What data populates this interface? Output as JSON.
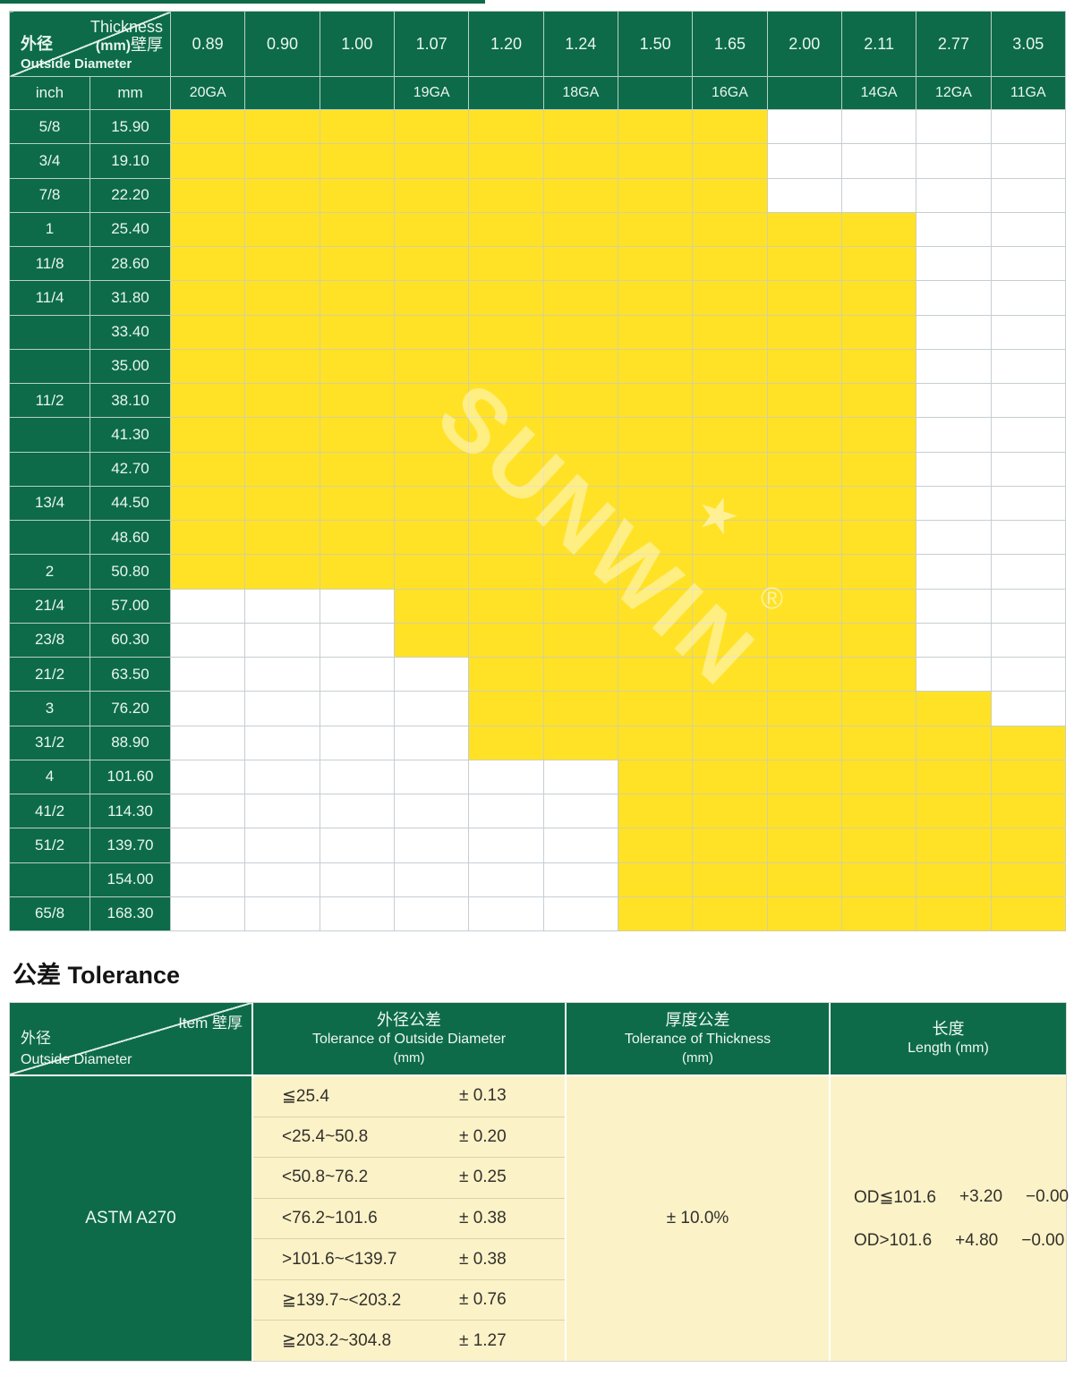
{
  "main_table": {
    "corner": {
      "thickness_en": "Thickness",
      "thickness_unit": "(mm)",
      "thickness_cn": "壁厚",
      "od_cn": "外径",
      "od_en": "Outside Diameter"
    },
    "subheader": {
      "inch": "inch",
      "mm": "mm"
    },
    "thickness_columns": [
      "0.89",
      "0.90",
      "1.00",
      "1.07",
      "1.20",
      "1.24",
      "1.50",
      "1.65",
      "2.00",
      "2.11",
      "2.77",
      "3.05"
    ],
    "gauge_row": [
      "20GA",
      "",
      "",
      "19GA",
      "",
      "18GA",
      "",
      "16GA",
      "",
      "14GA",
      "12GA",
      "11GA"
    ],
    "rows": [
      {
        "inch": "5/8",
        "mm": "15.90",
        "yellow_from": 1,
        "yellow_to": 8
      },
      {
        "inch": "3/4",
        "mm": "19.10",
        "yellow_from": 1,
        "yellow_to": 8
      },
      {
        "inch": "7/8",
        "mm": "22.20",
        "yellow_from": 1,
        "yellow_to": 8
      },
      {
        "inch": "1",
        "mm": "25.40",
        "yellow_from": 1,
        "yellow_to": 10
      },
      {
        "inch": "11/8",
        "mm": "28.60",
        "yellow_from": 1,
        "yellow_to": 10
      },
      {
        "inch": "11/4",
        "mm": "31.80",
        "yellow_from": 1,
        "yellow_to": 10
      },
      {
        "inch": "",
        "mm": "33.40",
        "yellow_from": 1,
        "yellow_to": 10
      },
      {
        "inch": "",
        "mm": "35.00",
        "yellow_from": 1,
        "yellow_to": 10
      },
      {
        "inch": "11/2",
        "mm": "38.10",
        "yellow_from": 1,
        "yellow_to": 10
      },
      {
        "inch": "",
        "mm": "41.30",
        "yellow_from": 1,
        "yellow_to": 10
      },
      {
        "inch": "",
        "mm": "42.70",
        "yellow_from": 1,
        "yellow_to": 10
      },
      {
        "inch": "13/4",
        "mm": "44.50",
        "yellow_from": 1,
        "yellow_to": 10
      },
      {
        "inch": "",
        "mm": "48.60",
        "yellow_from": 1,
        "yellow_to": 10
      },
      {
        "inch": "2",
        "mm": "50.80",
        "yellow_from": 1,
        "yellow_to": 10
      },
      {
        "inch": "21/4",
        "mm": "57.00",
        "yellow_from": 4,
        "yellow_to": 10
      },
      {
        "inch": "23/8",
        "mm": "60.30",
        "yellow_from": 4,
        "yellow_to": 10
      },
      {
        "inch": "21/2",
        "mm": "63.50",
        "yellow_from": 5,
        "yellow_to": 10
      },
      {
        "inch": "3",
        "mm": "76.20",
        "yellow_from": 5,
        "yellow_to": 11
      },
      {
        "inch": "31/2",
        "mm": "88.90",
        "yellow_from": 5,
        "yellow_to": 12
      },
      {
        "inch": "4",
        "mm": "101.60",
        "yellow_from": 7,
        "yellow_to": 12
      },
      {
        "inch": "41/2",
        "mm": "114.30",
        "yellow_from": 7,
        "yellow_to": 12
      },
      {
        "inch": "51/2",
        "mm": "139.70",
        "yellow_from": 7,
        "yellow_to": 12
      },
      {
        "inch": "",
        "mm": "154.00",
        "yellow_from": 7,
        "yellow_to": 12
      },
      {
        "inch": "65/8",
        "mm": "168.30",
        "yellow_from": 7,
        "yellow_to": 12
      }
    ]
  },
  "watermark": {
    "text": "SUNWIN",
    "star": "★",
    "registered": "®"
  },
  "tolerance": {
    "title_cn": "公差",
    "title_en": "Tolerance",
    "header": {
      "item_cn": "Item 壁厚",
      "od_cn": "外径",
      "od_en": "Outside Diameter",
      "col2_cn": "外径公差",
      "col2_en": "Tolerance of Outside Diameter",
      "col2_unit": "(mm)",
      "col3_cn": "厚度公差",
      "col3_en": "Tolerance of Thickness",
      "col3_unit": "(mm)",
      "col4_cn": "长度",
      "col4_en": "Length  (mm)"
    },
    "material": "ASTM A270",
    "od_tolerances": [
      {
        "range": "≦25.4",
        "tol": "± 0.13"
      },
      {
        "range": "<25.4~50.8",
        "tol": "± 0.20"
      },
      {
        "range": "<50.8~76.2",
        "tol": "± 0.25"
      },
      {
        "range": "<76.2~101.6",
        "tol": "± 0.38"
      },
      {
        "range": ">101.6~<139.7",
        "tol": "± 0.38"
      },
      {
        "range": "≧139.7~<203.2",
        "tol": "± 0.76"
      },
      {
        "range": "≧203.2~304.8",
        "tol": "± 1.27"
      }
    ],
    "thickness_tolerance": "± 10.0%",
    "length_rows": [
      {
        "od": "OD≦101.6",
        "plus": "+3.20",
        "minus": "−0.00"
      },
      {
        "od": "OD>101.6",
        "plus": "+4.80",
        "minus": "−0.00"
      }
    ]
  },
  "colors": {
    "green": "#0d6b49",
    "yellow": "#ffe226",
    "cream": "#fbf2c8",
    "grid": "#c6ced2"
  }
}
